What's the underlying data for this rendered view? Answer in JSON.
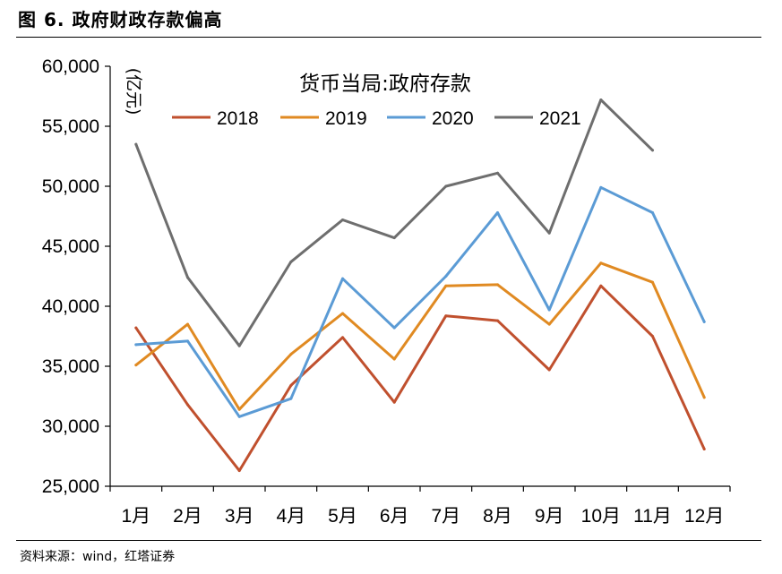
{
  "figure": {
    "title": "图 6. 政府财政存款偏高",
    "source": "资料来源：wind，红塔证券"
  },
  "chart_data": {
    "type": "line",
    "title": "货币当局:政府存款",
    "ylabel": "(亿元)",
    "xlabel": "",
    "categories": [
      "1月",
      "2月",
      "3月",
      "4月",
      "5月",
      "6月",
      "7月",
      "8月",
      "9月",
      "10月",
      "11月",
      "12月"
    ],
    "ylim": [
      25000,
      60000
    ],
    "yticks": [
      25000,
      30000,
      35000,
      40000,
      45000,
      50000,
      55000,
      60000
    ],
    "ytick_labels": [
      "25,000",
      "30,000",
      "35,000",
      "40,000",
      "45,000",
      "50,000",
      "55,000",
      "60,000"
    ],
    "grid": false,
    "legend_position": "top",
    "series": [
      {
        "name": "2018",
        "color": "#C0502E",
        "values": [
          38200,
          31800,
          26300,
          33400,
          37400,
          32000,
          39200,
          38800,
          34700,
          41700,
          37500,
          28100
        ]
      },
      {
        "name": "2019",
        "color": "#E08A22",
        "values": [
          35100,
          38500,
          31400,
          36000,
          39400,
          35600,
          41700,
          41800,
          38500,
          43600,
          42000,
          32400
        ]
      },
      {
        "name": "2020",
        "color": "#5B9BD5",
        "values": [
          36800,
          37100,
          30800,
          32300,
          42300,
          38200,
          42500,
          47800,
          39700,
          49900,
          47800,
          38700
        ]
      },
      {
        "name": "2021",
        "color": "#6E6E6E",
        "values": [
          53500,
          42400,
          36700,
          43700,
          47200,
          45700,
          50000,
          51100,
          46100,
          57200,
          53000,
          null
        ]
      }
    ]
  }
}
